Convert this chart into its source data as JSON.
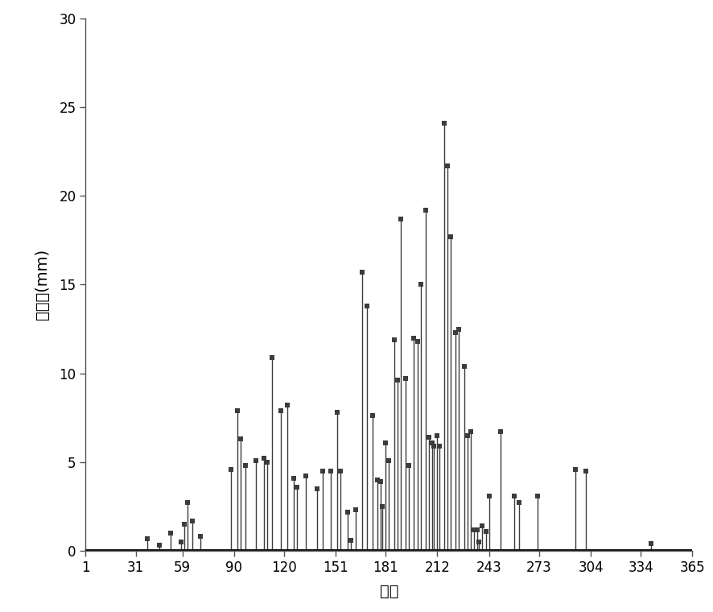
{
  "title": "",
  "xlabel": "天数",
  "ylabel": "降水量(mm)",
  "xlim": [
    1,
    365
  ],
  "ylim": [
    0,
    30
  ],
  "xticks": [
    1,
    31,
    59,
    90,
    120,
    151,
    181,
    212,
    243,
    273,
    304,
    334,
    365
  ],
  "yticks": [
    0,
    5,
    10,
    15,
    20,
    25,
    30
  ],
  "background_color": "#ffffff",
  "line_color": "#3c3c3c",
  "marker_color": "#3c3c3c",
  "marker_size": 4,
  "line_width": 1.0,
  "data_points": [
    [
      38,
      0.7
    ],
    [
      45,
      0.3
    ],
    [
      52,
      1.0
    ],
    [
      58,
      0.5
    ],
    [
      60,
      1.5
    ],
    [
      62,
      2.7
    ],
    [
      65,
      1.7
    ],
    [
      70,
      0.8
    ],
    [
      88,
      4.6
    ],
    [
      92,
      7.9
    ],
    [
      94,
      6.3
    ],
    [
      97,
      4.8
    ],
    [
      103,
      5.1
    ],
    [
      108,
      5.2
    ],
    [
      110,
      5.0
    ],
    [
      113,
      10.9
    ],
    [
      118,
      7.9
    ],
    [
      122,
      8.2
    ],
    [
      126,
      4.1
    ],
    [
      128,
      3.6
    ],
    [
      133,
      4.2
    ],
    [
      140,
      3.5
    ],
    [
      143,
      4.5
    ],
    [
      148,
      4.5
    ],
    [
      152,
      7.8
    ],
    [
      154,
      4.5
    ],
    [
      158,
      2.2
    ],
    [
      160,
      0.6
    ],
    [
      163,
      2.3
    ],
    [
      167,
      15.7
    ],
    [
      170,
      13.8
    ],
    [
      173,
      7.6
    ],
    [
      176,
      4.0
    ],
    [
      178,
      3.9
    ],
    [
      179,
      2.5
    ],
    [
      181,
      6.1
    ],
    [
      183,
      5.1
    ],
    [
      186,
      11.9
    ],
    [
      188,
      9.6
    ],
    [
      190,
      18.7
    ],
    [
      193,
      9.7
    ],
    [
      195,
      4.8
    ],
    [
      198,
      12.0
    ],
    [
      200,
      11.8
    ],
    [
      202,
      15.0
    ],
    [
      205,
      19.2
    ],
    [
      207,
      6.4
    ],
    [
      209,
      6.1
    ],
    [
      210,
      5.9
    ],
    [
      212,
      6.5
    ],
    [
      213,
      5.9
    ],
    [
      216,
      24.1
    ],
    [
      218,
      21.7
    ],
    [
      220,
      17.7
    ],
    [
      223,
      12.3
    ],
    [
      225,
      12.5
    ],
    [
      228,
      10.4
    ],
    [
      230,
      6.5
    ],
    [
      232,
      6.7
    ],
    [
      234,
      1.2
    ],
    [
      236,
      1.2
    ],
    [
      237,
      0.5
    ],
    [
      239,
      1.4
    ],
    [
      241,
      1.1
    ],
    [
      243,
      3.1
    ],
    [
      250,
      6.7
    ],
    [
      258,
      3.1
    ],
    [
      261,
      2.7
    ],
    [
      272,
      3.1
    ],
    [
      295,
      4.6
    ],
    [
      301,
      4.5
    ],
    [
      340,
      0.4
    ]
  ]
}
